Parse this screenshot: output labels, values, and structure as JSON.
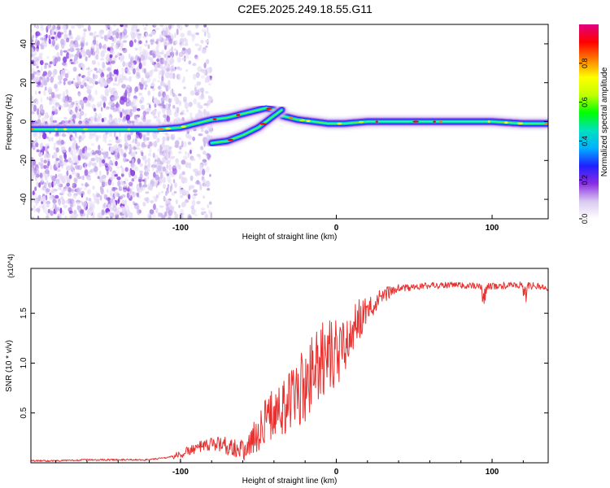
{
  "title": "C2E5.2025.249.18.55.G11",
  "chart_data": [
    {
      "type": "heatmap",
      "xlabel": "Height of straight line (km)",
      "ylabel": "Frequency (Hz)",
      "xlim": [
        -196,
        136
      ],
      "ylim": [
        -50,
        50
      ],
      "xticks": [
        -100,
        0,
        100
      ],
      "yticks": [
        -40,
        -20,
        0,
        20,
        40
      ],
      "colorbar": {
        "label": "Normalized spectral amplitude",
        "range": [
          0,
          1
        ],
        "ticks": [
          0.0,
          0.2,
          0.4,
          0.6,
          0.8
        ],
        "colors": [
          "#ffffff",
          "#d8c8f0",
          "#8a2be2",
          "#2020ff",
          "#00b0ff",
          "#00e0c0",
          "#00ff00",
          "#c0ff00",
          "#ffff00",
          "#ff8000",
          "#ff0000",
          "#e00080"
        ]
      },
      "traces": [
        {
          "x": [
            -196,
            -170,
            -150,
            -130,
            -115,
            -100,
            -90,
            -80,
            -70,
            -60,
            -50,
            -45,
            -40,
            -35,
            -25,
            -15,
            -5,
            5,
            20,
            40,
            60,
            80,
            100,
            120,
            136
          ],
          "y": [
            -4,
            -4,
            -4,
            -4,
            -4,
            -3,
            -1,
            1,
            2,
            4,
            6,
            7,
            6,
            3,
            1,
            0,
            -1,
            -1,
            0,
            0,
            0,
            0,
            0,
            -1,
            -1
          ]
        },
        {
          "x": [
            -80,
            -70,
            -60,
            -50,
            -45,
            -40,
            -35
          ],
          "y": [
            -11,
            -10,
            -7,
            -3,
            0,
            3,
            6
          ]
        }
      ]
    },
    {
      "type": "line",
      "xlabel": "Height of straight line (km)",
      "ylabel": "SNR (10 * v/v)",
      "y_multiplier": "(x10^4)",
      "xlim": [
        -196,
        136
      ],
      "ylim": [
        0,
        1.95
      ],
      "xticks": [
        -100,
        0,
        100
      ],
      "yticks": [
        0.5,
        1.0,
        1.5
      ],
      "color": "#e8312f",
      "x": [
        -196,
        -180,
        -160,
        -140,
        -120,
        -110,
        -100,
        -95,
        -90,
        -85,
        -80,
        -75,
        -70,
        -65,
        -60,
        -55,
        -50,
        -45,
        -40,
        -35,
        -30,
        -25,
        -20,
        -15,
        -10,
        -5,
        0,
        5,
        10,
        15,
        20,
        25,
        30,
        35,
        40,
        50,
        60,
        70,
        80,
        90,
        100,
        110,
        120,
        130,
        136
      ],
      "y": [
        0.02,
        0.02,
        0.03,
        0.03,
        0.03,
        0.05,
        0.08,
        0.12,
        0.15,
        0.16,
        0.18,
        0.2,
        0.17,
        0.16,
        0.12,
        0.2,
        0.3,
        0.45,
        0.5,
        0.55,
        0.6,
        0.68,
        0.75,
        0.9,
        1.0,
        1.05,
        1.1,
        1.2,
        1.3,
        1.45,
        1.52,
        1.6,
        1.68,
        1.72,
        1.75,
        1.76,
        1.78,
        1.78,
        1.78,
        1.77,
        1.77,
        1.78,
        1.78,
        1.77,
        1.76
      ]
    }
  ]
}
